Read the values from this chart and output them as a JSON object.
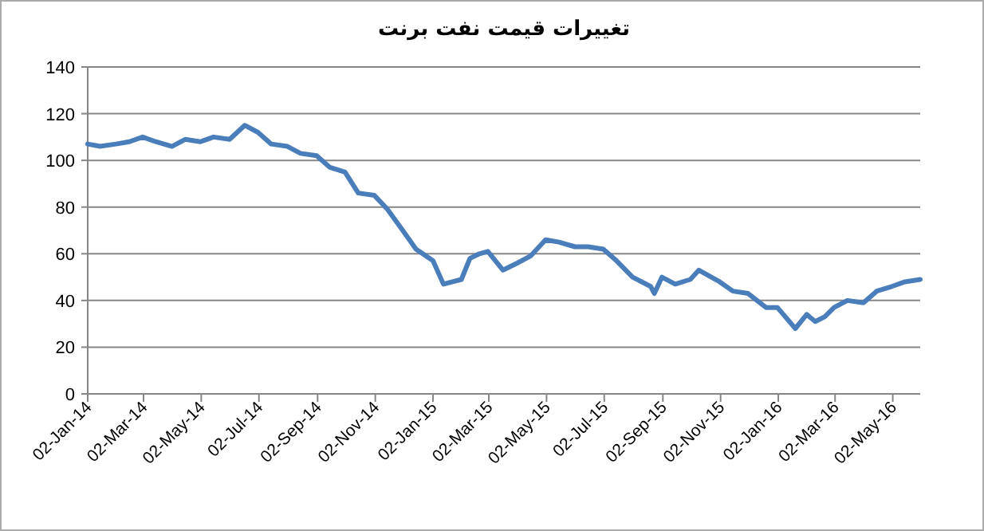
{
  "chart_data": {
    "type": "line",
    "title": "تغییرات قیمت نفت برنت",
    "x": [
      "2014-01-02",
      "2014-01-15",
      "2014-02-01",
      "2014-02-15",
      "2014-03-01",
      "2014-03-15",
      "2014-04-01",
      "2014-04-15",
      "2014-05-01",
      "2014-05-15",
      "2014-06-01",
      "2014-06-17",
      "2014-07-01",
      "2014-07-15",
      "2014-08-01",
      "2014-08-15",
      "2014-09-01",
      "2014-09-15",
      "2014-10-01",
      "2014-10-15",
      "2014-11-01",
      "2014-11-15",
      "2014-12-01",
      "2014-12-15",
      "2015-01-02",
      "2015-01-13",
      "2015-02-01",
      "2015-02-10",
      "2015-02-20",
      "2015-03-01",
      "2015-03-17",
      "2015-04-01",
      "2015-04-15",
      "2015-05-01",
      "2015-05-15",
      "2015-06-01",
      "2015-06-15",
      "2015-07-01",
      "2015-07-15",
      "2015-08-01",
      "2015-08-20",
      "2015-08-24",
      "2015-09-01",
      "2015-09-15",
      "2015-10-01",
      "2015-10-10",
      "2015-11-01",
      "2015-11-15",
      "2015-12-01",
      "2015-12-20",
      "2016-01-01",
      "2016-01-20",
      "2016-02-01",
      "2016-02-10",
      "2016-02-20",
      "2016-03-01",
      "2016-03-15",
      "2016-04-01",
      "2016-04-15",
      "2016-05-01",
      "2016-05-15",
      "2016-05-31"
    ],
    "series": [
      {
        "color": "#4a7ebb",
        "values": [
          107,
          106,
          107,
          108,
          110,
          108,
          106,
          109,
          108,
          110,
          109,
          115,
          112,
          107,
          106,
          103,
          102,
          97,
          95,
          86,
          85,
          79,
          70,
          62,
          57,
          47,
          49,
          58,
          60,
          61,
          53,
          56,
          59,
          66,
          65,
          63,
          63,
          62,
          57,
          50,
          46,
          43,
          50,
          47,
          49,
          53,
          48,
          44,
          43,
          37,
          37,
          28,
          34,
          31,
          33,
          37,
          40,
          39,
          44,
          46,
          48,
          49
        ]
      }
    ],
    "xlim": [
      "2014-01-02",
      "2016-05-31"
    ],
    "xticks": [
      {
        "value": "2014-01-02",
        "label": "02-Jan-14"
      },
      {
        "value": "2014-03-02",
        "label": "02-Mar-14"
      },
      {
        "value": "2014-05-02",
        "label": "02-May-14"
      },
      {
        "value": "2014-07-02",
        "label": "02-Jul-14"
      },
      {
        "value": "2014-09-02",
        "label": "02-Sep-14"
      },
      {
        "value": "2014-11-02",
        "label": "02-Nov-14"
      },
      {
        "value": "2015-01-02",
        "label": "02-Jan-15"
      },
      {
        "value": "2015-03-02",
        "label": "02-Mar-15"
      },
      {
        "value": "2015-05-02",
        "label": "02-May-15"
      },
      {
        "value": "2015-07-02",
        "label": "02-Jul-15"
      },
      {
        "value": "2015-09-02",
        "label": "02-Sep-15"
      },
      {
        "value": "2015-11-02",
        "label": "02-Nov-15"
      },
      {
        "value": "2016-01-02",
        "label": "02-Jan-16"
      },
      {
        "value": "2016-03-02",
        "label": "02-Mar-16"
      },
      {
        "value": "2016-05-02",
        "label": "02-May-16"
      }
    ],
    "ylim": [
      0,
      140
    ],
    "yticks": [
      0,
      20,
      40,
      60,
      80,
      100,
      120,
      140
    ],
    "grid": "y",
    "marker": "none",
    "line_style": "solid"
  }
}
